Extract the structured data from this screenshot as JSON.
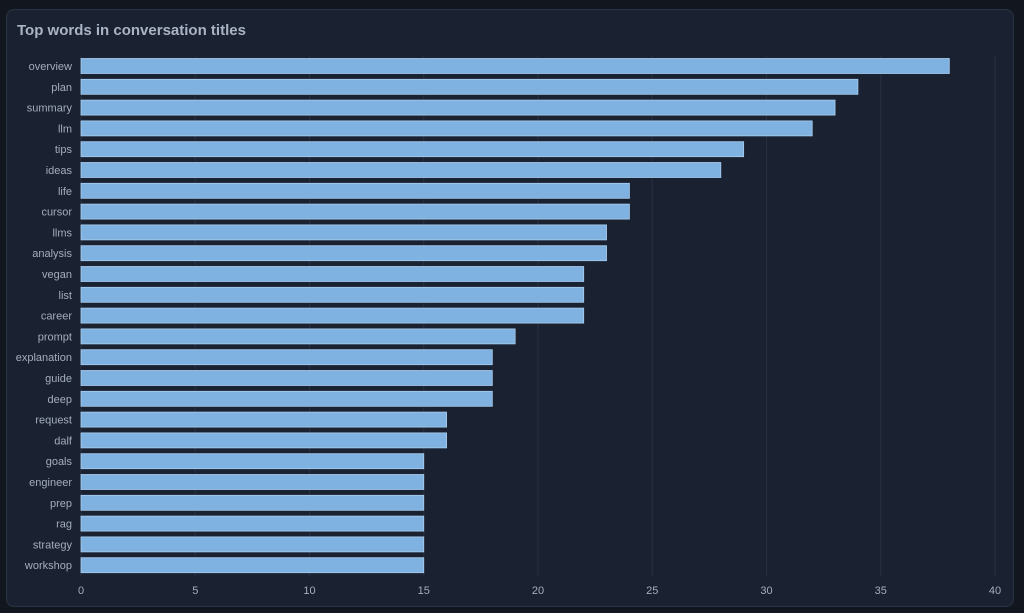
{
  "chart_data": {
    "type": "bar",
    "orientation": "horizontal",
    "title": "Top words in conversation titles",
    "categories": [
      "overview",
      "plan",
      "summary",
      "llm",
      "tips",
      "ideas",
      "life",
      "cursor",
      "llms",
      "analysis",
      "vegan",
      "list",
      "career",
      "prompt",
      "explanation",
      "guide",
      "deep",
      "request",
      "dalf",
      "goals",
      "engineer",
      "prep",
      "rag",
      "strategy",
      "workshop"
    ],
    "values": [
      38,
      34,
      33,
      32,
      29,
      28,
      24,
      24,
      23,
      23,
      22,
      22,
      22,
      19,
      18,
      18,
      18,
      16,
      16,
      15,
      15,
      15,
      15,
      15,
      15
    ],
    "xlim": [
      0,
      40
    ],
    "xticks": [
      0,
      5,
      10,
      15,
      20,
      25,
      30,
      35,
      40
    ],
    "xlabel": "",
    "ylabel": "",
    "grid": true,
    "colors": {
      "bar": "#7fb2e0",
      "bar_edge": "#a8cdf0",
      "background": "#1a2232",
      "grid": "#263043"
    }
  }
}
